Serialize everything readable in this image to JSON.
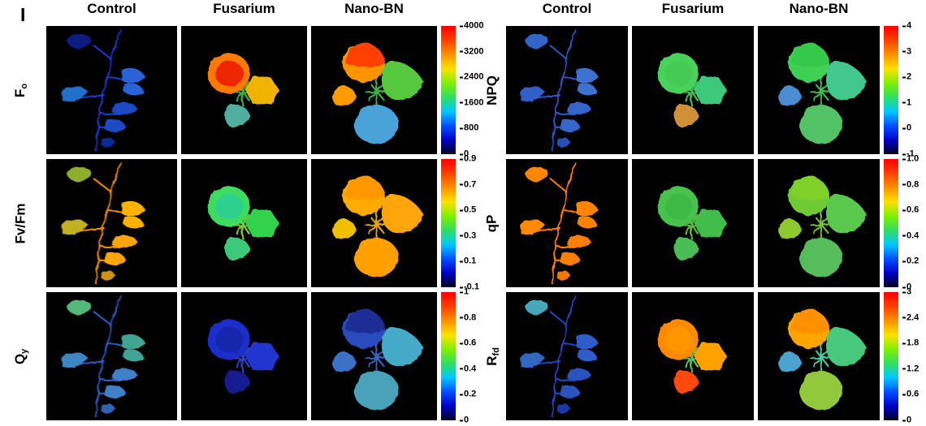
{
  "figure_label": "I",
  "column_headers": [
    "Control",
    "Fusarium",
    "Nano-BN"
  ],
  "colormap": {
    "name": "jet",
    "stops_bottom_to_top": [
      "#02021e",
      "#0000c8",
      "#0050ff",
      "#00c8ff",
      "#30e060",
      "#80f000",
      "#ffe000",
      "#ff9000",
      "#ff4000",
      "#ff0000"
    ]
  },
  "blocks": [
    {
      "side": "left",
      "rows": [
        {
          "key": "fo",
          "label_main": "F",
          "label_sub": "o",
          "colorbar_ticks": [
            "4000",
            "3200",
            "2400",
            "1600",
            "800",
            "0"
          ],
          "panels": [
            {
              "condition": "Control",
              "plant": "seedling",
              "palette": [
                "#1a3ad0",
                "#0c1a80",
                "#2a62d8",
                "#2470cc",
                "#1a48c4",
                "#102a96"
              ]
            },
            {
              "condition": "Fusarium",
              "plant": "rosette",
              "palette": [
                "#36a846",
                "#ff7a00",
                "#f0b400",
                "#50ae9e",
                "#ee2800"
              ]
            },
            {
              "condition": "Nano-BN",
              "plant": "cluster",
              "palette": [
                "#3ab34a",
                "#ff9400",
                "#54c83e",
                "#ff9a00",
                "#4aa2d8",
                "#ff4000"
              ]
            }
          ]
        },
        {
          "key": "fvfm",
          "label_main": "Fv/Fm",
          "label_sub": "",
          "colorbar_ticks": [
            "0.9",
            "0.7",
            "0.5",
            "0.3",
            "0.1",
            "-0.1"
          ],
          "panels": [
            {
              "condition": "Control",
              "plant": "seedling",
              "palette": [
                "#f09000",
                "#8fae2e",
                "#ffb300",
                "#c2b120",
                "#ffa60a",
                "#cf9212"
              ]
            },
            {
              "condition": "Fusarium",
              "plant": "rosette",
              "palette": [
                "#7cc23a",
                "#3cdc5e",
                "#32d24c",
                "#3cc87a",
                "#2ed08e"
              ]
            },
            {
              "condition": "Nano-BN",
              "plant": "cluster",
              "palette": [
                "#e2a40a",
                "#ffab00",
                "#ffa60a",
                "#eec004",
                "#ffa004",
                "#ff9800"
              ]
            }
          ]
        },
        {
          "key": "qy",
          "label_main": "Q",
          "label_sub": "y",
          "colorbar_ticks": [
            "1",
            "0.8",
            "0.6",
            "0.4",
            "0.2",
            "0"
          ],
          "panels": [
            {
              "condition": "Control",
              "plant": "seedling",
              "palette": [
                "#2c5ec8",
                "#54b878",
                "#42a492",
                "#3e86c2",
                "#4080c8",
                "#3064b0"
              ]
            },
            {
              "condition": "Fusarium",
              "plant": "rosette",
              "palette": [
                "#2a40be",
                "#1c2eca",
                "#2136d0",
                "#141f8e",
                "#1526aa"
              ]
            },
            {
              "condition": "Nano-BN",
              "plant": "cluster",
              "palette": [
                "#3464c0",
                "#2a4cbc",
                "#44aac8",
                "#3a72c8",
                "#4aa2ba",
                "#1c2e96"
              ]
            }
          ]
        }
      ]
    },
    {
      "side": "right",
      "rows": [
        {
          "key": "npq",
          "label_main": "NPQ",
          "label_sub": "",
          "colorbar_ticks": [
            "4",
            "3",
            "2",
            "1",
            "0",
            "-1"
          ],
          "panels": [
            {
              "condition": "Control",
              "plant": "seedling",
              "palette": [
                "#2b56cc",
                "#3265c8",
                "#3c72d0",
                "#305ec6",
                "#3566cc",
                "#2850b8"
              ]
            },
            {
              "condition": "Fusarium",
              "plant": "rosette",
              "palette": [
                "#41b852",
                "#4ad25a",
                "#3cc87c",
                "#d09038",
                "#44ca54"
              ]
            },
            {
              "condition": "Nano-BN",
              "plant": "cluster",
              "palette": [
                "#3cba52",
                "#40d054",
                "#42c88e",
                "#4c8cd2",
                "#52c266",
                "#36c84c"
              ]
            }
          ]
        },
        {
          "key": "qp",
          "label_main": "qP",
          "label_sub": "",
          "colorbar_ticks": [
            "1.0",
            "0.8",
            "0.6",
            "0.4",
            "0.2",
            "0"
          ],
          "panels": [
            {
              "condition": "Control",
              "plant": "seedling",
              "palette": [
                "#ff7d00",
                "#ff8600",
                "#ff8200",
                "#ff8a00",
                "#ff7f00",
                "#f27600"
              ]
            },
            {
              "condition": "Fusarium",
              "plant": "rosette",
              "palette": [
                "#5cb83c",
                "#46c24e",
                "#40be48",
                "#4abc52",
                "#3cba44"
              ]
            },
            {
              "condition": "Nano-BN",
              "plant": "cluster",
              "palette": [
                "#72c232",
                "#70ca36",
                "#5ac84e",
                "#8eca2e",
                "#54be5a",
                "#80d02c"
              ]
            }
          ]
        },
        {
          "key": "rfd",
          "label_main": "R",
          "label_sub": "fd",
          "colorbar_ticks": [
            "3",
            "2.4",
            "1.8",
            "1.2",
            "0.6",
            "0"
          ],
          "panels": [
            {
              "condition": "Control",
              "plant": "seedling",
              "palette": [
                "#2344c2",
                "#46a6ba",
                "#2f5cc8",
                "#3268c0",
                "#2b52c0",
                "#1c38a6"
              ]
            },
            {
              "condition": "Fusarium",
              "plant": "rosette",
              "palette": [
                "#52c254",
                "#ff8a00",
                "#ffa200",
                "#ff4a10",
                "#ff9600"
              ]
            },
            {
              "condition": "Nano-BN",
              "plant": "cluster",
              "palette": [
                "#44c89e",
                "#ffa400",
                "#46c87a",
                "#4ca4d0",
                "#92c83a",
                "#ff9000"
              ]
            }
          ]
        }
      ]
    }
  ]
}
